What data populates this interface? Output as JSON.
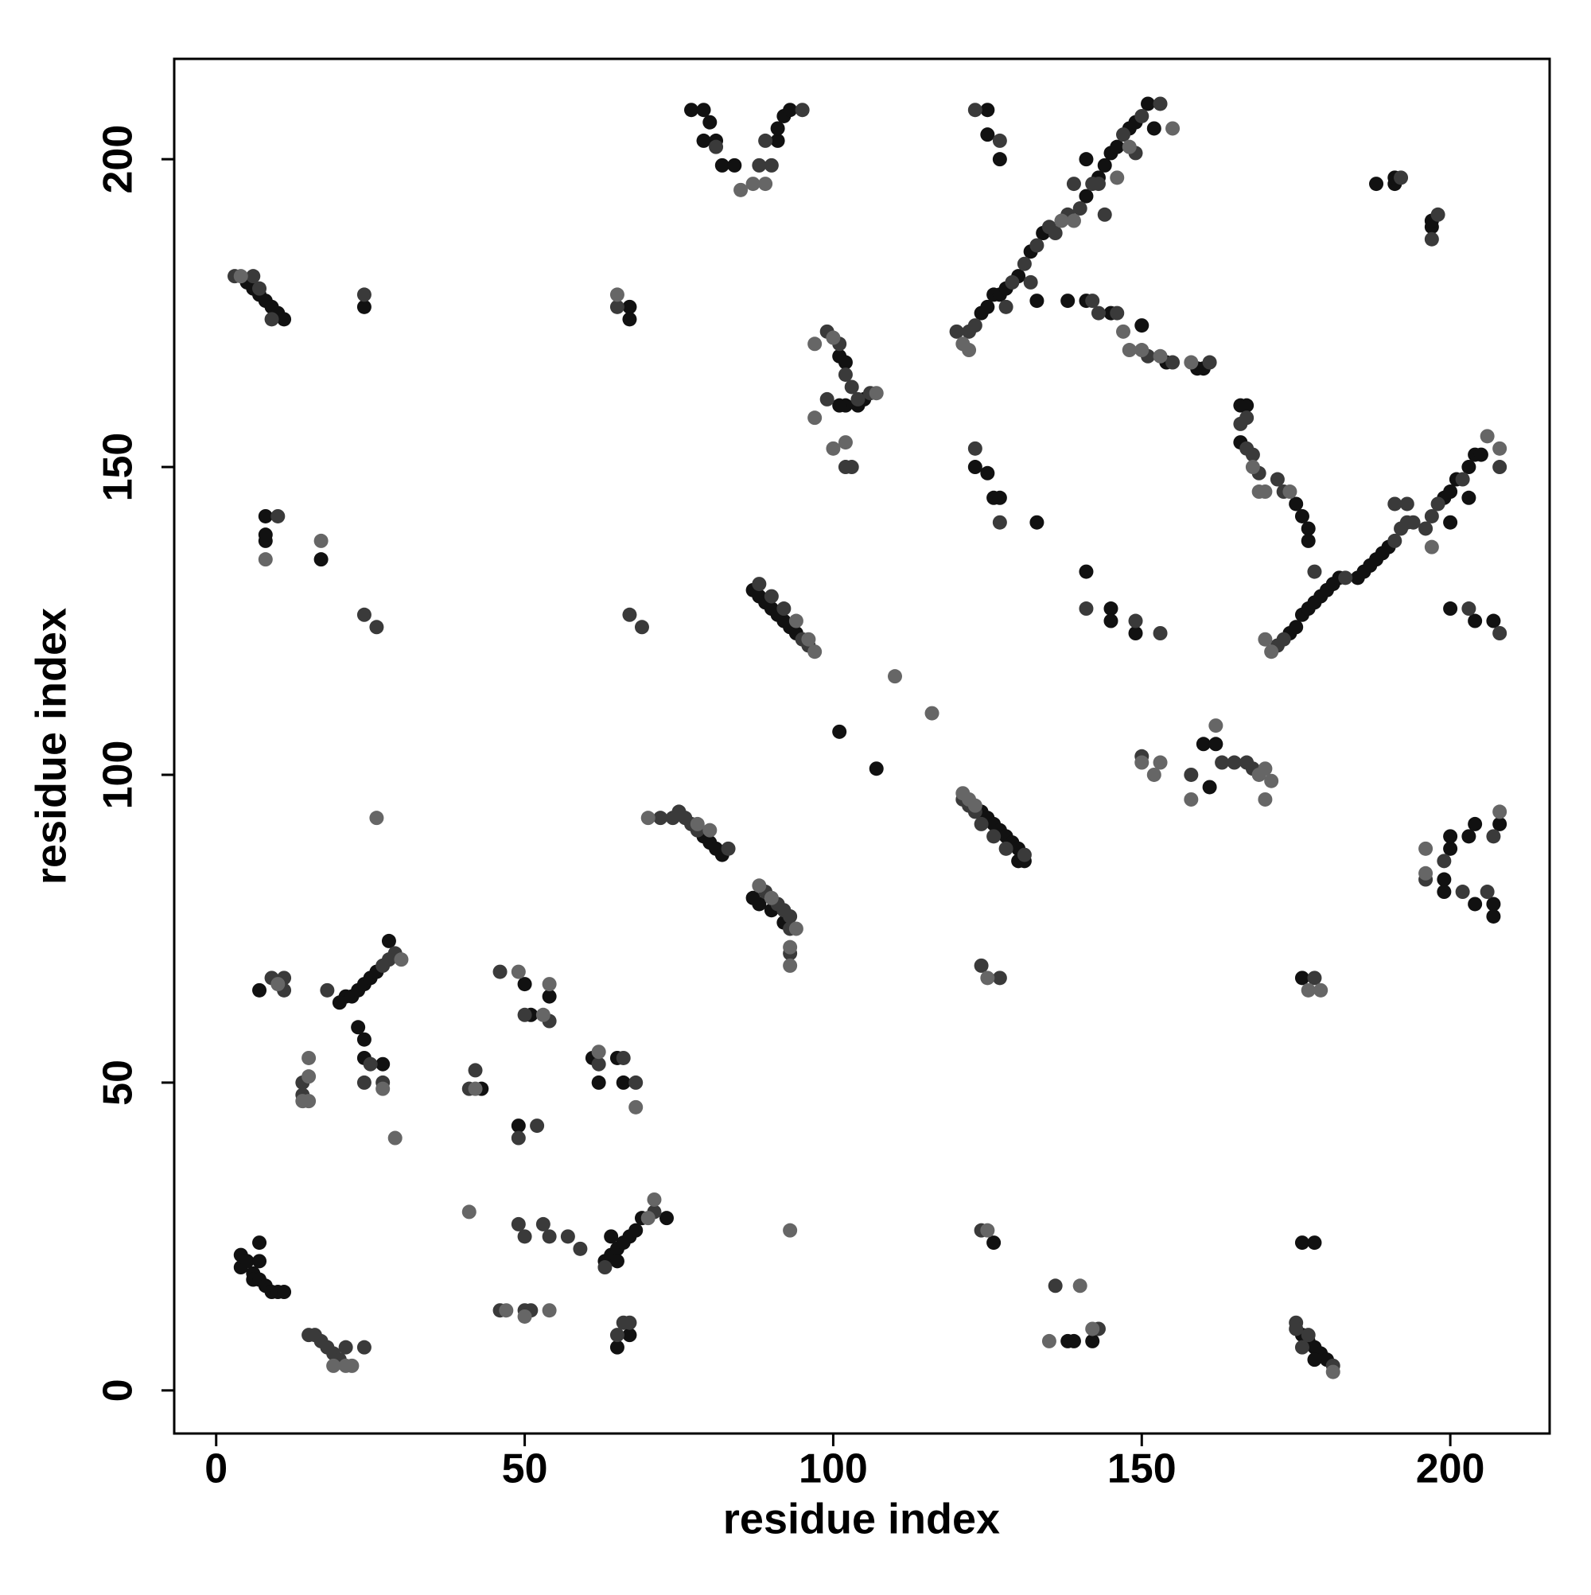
{
  "chart_data": {
    "type": "scatter",
    "xlabel": "residue index",
    "ylabel": "residue index",
    "xlim": [
      -6.8,
      216.1
    ],
    "ylim": [
      -7,
      216.3
    ],
    "xticks": [
      0,
      50,
      100,
      150,
      200
    ],
    "yticks": [
      0,
      50,
      100,
      150,
      200
    ],
    "grid": false,
    "series": [
      {
        "color": "#111111",
        "x": [
          4,
          4,
          5,
          6,
          6,
          7,
          8,
          9,
          10,
          11,
          7,
          7,
          63,
          64,
          65,
          66,
          67,
          68,
          69,
          73,
          64,
          65,
          65,
          67,
          126,
          138,
          139,
          142,
          176,
          178,
          176,
          177,
          178,
          179,
          180,
          178,
          21,
          22,
          23,
          24,
          25,
          26,
          28,
          7,
          20,
          23,
          24,
          24,
          27,
          43,
          50,
          51,
          54,
          49,
          61,
          62,
          65,
          66,
          176,
          79,
          80,
          81,
          82,
          88,
          90,
          92,
          87,
          124,
          125,
          126,
          127,
          128,
          129,
          130,
          131,
          130,
          101,
          107,
          160,
          161,
          162,
          200,
          200,
          203,
          204,
          204,
          207,
          207,
          199,
          199,
          208,
          87,
          88,
          89,
          90,
          91,
          92,
          93,
          94,
          141,
          145,
          145,
          149,
          174,
          175,
          176,
          177,
          178,
          179,
          180,
          181,
          182,
          185,
          186,
          187,
          188,
          189,
          190,
          199,
          200,
          201,
          203,
          204,
          205,
          203,
          200,
          200,
          204,
          207,
          8,
          8,
          8,
          17,
          5,
          6,
          7,
          8,
          9,
          10,
          11,
          24,
          67,
          67,
          77,
          79,
          80,
          79,
          81,
          82,
          84,
          92,
          93,
          91,
          91,
          101,
          102,
          104,
          102,
          101,
          105,
          125,
          125,
          127,
          123,
          125,
          126,
          127,
          133,
          124,
          125,
          126,
          127,
          128,
          130,
          132,
          134,
          141,
          143,
          144,
          145,
          146,
          148,
          149,
          152,
          151,
          141,
          133,
          138,
          141,
          145,
          150,
          154,
          159,
          160,
          166,
          167,
          166,
          175,
          176,
          177,
          177,
          188,
          191,
          191,
          197,
          197
        ],
        "values": [
          22,
          20,
          21,
          19,
          18,
          18,
          17,
          16,
          16,
          16,
          24,
          21,
          21,
          22,
          23,
          24,
          25,
          26,
          28,
          28,
          25,
          21,
          7,
          9,
          24,
          8,
          8,
          8,
          24,
          24,
          9,
          8,
          7,
          6,
          5,
          5,
          64,
          64,
          65,
          66,
          67,
          68,
          73,
          65,
          63,
          59,
          57,
          54,
          53,
          49,
          66,
          61,
          64,
          43,
          54,
          50,
          54,
          50,
          67,
          90,
          89,
          88,
          87,
          79,
          78,
          76,
          80,
          94,
          93,
          92,
          91,
          90,
          89,
          88,
          86,
          86,
          107,
          101,
          105,
          98,
          105,
          88,
          90,
          90,
          92,
          79,
          79,
          77,
          83,
          81,
          92,
          130,
          129,
          128,
          127,
          126,
          125,
          124,
          123,
          133,
          127,
          125,
          123,
          123,
          124,
          126,
          127,
          128,
          129,
          130,
          131,
          132,
          132,
          133,
          134,
          135,
          136,
          137,
          145,
          146,
          148,
          150,
          152,
          152,
          145,
          141,
          127,
          125,
          125,
          138,
          139,
          142,
          135,
          180,
          179,
          178,
          177,
          176,
          175,
          174,
          176,
          176,
          174,
          208,
          208,
          206,
          203,
          203,
          199,
          199,
          207,
          208,
          203,
          205,
          168,
          167,
          160,
          160,
          160,
          161,
          208,
          204,
          200,
          150,
          149,
          145,
          145,
          141,
          175,
          176,
          178,
          178,
          179,
          181,
          185,
          188,
          194,
          197,
          199,
          201,
          202,
          205,
          206,
          205,
          209,
          200,
          177,
          177,
          177,
          175,
          173,
          167,
          166,
          166,
          160,
          160,
          154,
          144,
          142,
          140,
          138,
          196,
          196,
          197,
          189,
          190
        ]
      },
      {
        "color": "#3a3a3a",
        "x": [
          15,
          16,
          17,
          18,
          19,
          20,
          21,
          24,
          49,
          50,
          53,
          54,
          57,
          59,
          71,
          63,
          46,
          50,
          51,
          66,
          67,
          65,
          124,
          136,
          143,
          175,
          175,
          177,
          181,
          176,
          27,
          28,
          29,
          9,
          11,
          11,
          18,
          24,
          27,
          25,
          14,
          14,
          42,
          41,
          46,
          50,
          54,
          52,
          49,
          62,
          66,
          68,
          178,
          124,
          127,
          72,
          74,
          75,
          76,
          77,
          78,
          83,
          89,
          91,
          92,
          93,
          93,
          93,
          121,
          122,
          123,
          124,
          126,
          128,
          131,
          150,
          158,
          163,
          165,
          167,
          168,
          196,
          199,
          202,
          206,
          207,
          95,
          96,
          88,
          90,
          92,
          141,
          149,
          153,
          172,
          173,
          183,
          191,
          192,
          193,
          194,
          196,
          197,
          198,
          202,
          208,
          193,
          191,
          178,
          203,
          208,
          10,
          24,
          26,
          24,
          65,
          69,
          67,
          3,
          6,
          7,
          9,
          81,
          88,
          89,
          90,
          95,
          99,
          101,
          102,
          103,
          104,
          99,
          102,
          103,
          106,
          123,
          127,
          123,
          127,
          120,
          122,
          123,
          129,
          131,
          133,
          135,
          136,
          138,
          140,
          142,
          147,
          150,
          153,
          149,
          144,
          143,
          139,
          132,
          128,
          142,
          143,
          146,
          151,
          155,
          161,
          167,
          166,
          167,
          168,
          169,
          172,
          173,
          192,
          198,
          197
        ],
        "values": [
          9,
          9,
          8,
          7,
          6,
          5,
          7,
          7,
          27,
          25,
          27,
          25,
          25,
          23,
          29,
          20,
          13,
          13,
          13,
          11,
          11,
          9,
          26,
          17,
          10,
          11,
          10,
          9,
          4,
          7,
          69,
          70,
          71,
          67,
          67,
          65,
          65,
          50,
          50,
          53,
          50,
          48,
          52,
          49,
          68,
          61,
          60,
          43,
          41,
          53,
          54,
          50,
          67,
          69,
          67,
          93,
          93,
          94,
          93,
          92,
          91,
          88,
          81,
          79,
          78,
          77,
          75,
          71,
          96,
          95,
          94,
          92,
          90,
          88,
          87,
          103,
          100,
          102,
          102,
          102,
          101,
          83,
          86,
          81,
          81,
          90,
          122,
          121,
          131,
          129,
          127,
          127,
          125,
          123,
          121,
          122,
          132,
          138,
          140,
          141,
          141,
          140,
          142,
          144,
          148,
          150,
          144,
          144,
          133,
          127,
          123,
          142,
          178,
          124,
          126,
          176,
          124,
          126,
          181,
          181,
          179,
          174,
          202,
          199,
          203,
          199,
          208,
          172,
          170,
          165,
          163,
          161,
          161,
          150,
          150,
          162,
          208,
          203,
          153,
          141,
          172,
          172,
          173,
          180,
          183,
          186,
          189,
          188,
          191,
          192,
          196,
          204,
          207,
          209,
          201,
          191,
          196,
          196,
          180,
          176,
          177,
          175,
          175,
          168,
          167,
          167,
          158,
          157,
          153,
          152,
          149,
          148,
          146,
          197,
          191,
          187
        ]
      },
      {
        "color": "#666666",
        "x": [
          19,
          21,
          22,
          41,
          71,
          70,
          47,
          50,
          54,
          93,
          125,
          135,
          140,
          142,
          181,
          30,
          10,
          15,
          15,
          15,
          14,
          27,
          29,
          42,
          49,
          53,
          54,
          62,
          68,
          177,
          179,
          125,
          26,
          70,
          80,
          78,
          88,
          90,
          94,
          93,
          93,
          121,
          122,
          123,
          110,
          116,
          150,
          152,
          153,
          158,
          162,
          169,
          170,
          171,
          170,
          196,
          196,
          208,
          97,
          94,
          96,
          171,
          170,
          206,
          208,
          197,
          8,
          17,
          4,
          65,
          85,
          87,
          89,
          97,
          100,
          107,
          97,
          100,
          102,
          121,
          122,
          137,
          139,
          146,
          155,
          148,
          147,
          148,
          150,
          153,
          158,
          168,
          169,
          170,
          174
        ],
        "values": [
          4,
          4,
          4,
          29,
          31,
          28,
          13,
          12,
          13,
          26,
          26,
          8,
          17,
          10,
          3,
          70,
          66,
          51,
          54,
          47,
          47,
          49,
          41,
          49,
          68,
          61,
          66,
          55,
          46,
          65,
          65,
          67,
          93,
          93,
          91,
          92,
          82,
          80,
          75,
          72,
          69,
          97,
          96,
          95,
          116,
          110,
          102,
          100,
          102,
          96,
          108,
          100,
          101,
          99,
          96,
          84,
          88,
          94,
          120,
          125,
          122,
          120,
          122,
          155,
          153,
          137,
          135,
          138,
          181,
          178,
          195,
          196,
          196,
          170,
          171,
          162,
          158,
          153,
          154,
          170,
          169,
          190,
          190,
          197,
          205,
          202,
          172,
          169,
          169,
          168,
          167,
          150,
          146,
          146,
          146
        ]
      }
    ]
  }
}
